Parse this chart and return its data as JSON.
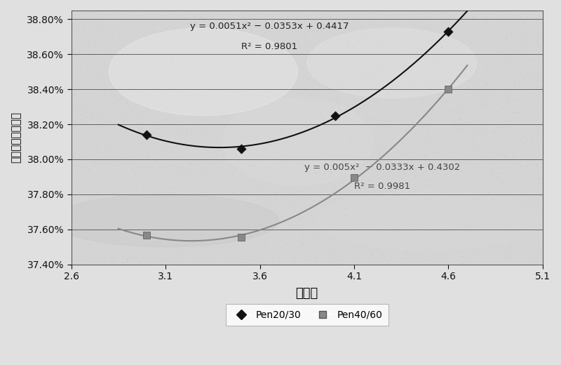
{
  "pen2030_points_x": [
    3.0,
    3.5,
    4.0,
    4.6
  ],
  "pen2030_points_y": [
    38.14,
    38.06,
    38.25,
    38.73
  ],
  "pen4060_points_x": [
    3.0,
    3.5,
    4.1,
    4.6
  ],
  "pen4060_points_y": [
    37.565,
    37.555,
    37.895,
    38.4
  ],
  "pen2030_color": "#111111",
  "pen4060_color": "#888888",
  "pen2030_eq_line1": "y = 0.0051x² − 0.0353x + 0.4417",
  "pen2030_eq_line2": "R² = 0.9801",
  "pen4060_eq_line1": "y = 0.005x²  − 0.0333x + 0.4302",
  "pen4060_eq_line2": "R² = 0.9981",
  "xlabel": "油石比",
  "ylabel": "粗集料矿料间隙率",
  "xlim": [
    2.6,
    5.1
  ],
  "ylim": [
    37.4,
    38.85
  ],
  "xticks": [
    2.6,
    3.1,
    3.6,
    4.1,
    4.6,
    5.1
  ],
  "yticks": [
    37.4,
    37.6,
    37.8,
    38.0,
    38.2,
    38.4,
    38.6,
    38.8
  ],
  "legend_labels": [
    "Pen20/30",
    "Pen40/60"
  ],
  "curve_x_start": 2.85,
  "curve_x_end": 4.7
}
